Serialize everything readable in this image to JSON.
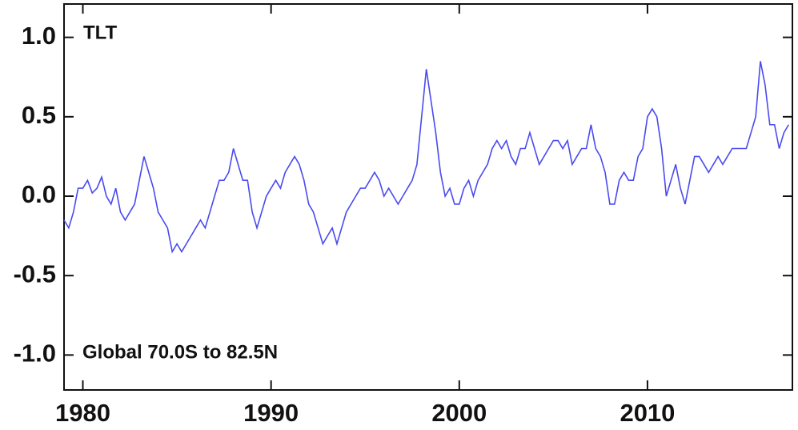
{
  "chart_data": {
    "type": "line",
    "annotations": [
      "TLT",
      "Global  70.0S to  82.5N"
    ],
    "x": [
      1979.0,
      1979.25,
      1979.5,
      1979.75,
      1980.0,
      1980.25,
      1980.5,
      1980.75,
      1981.0,
      1981.25,
      1981.5,
      1981.75,
      1982.0,
      1982.25,
      1982.5,
      1982.75,
      1983.0,
      1983.25,
      1983.5,
      1983.75,
      1984.0,
      1984.25,
      1984.5,
      1984.75,
      1985.0,
      1985.25,
      1985.5,
      1985.75,
      1986.0,
      1986.25,
      1986.5,
      1986.75,
      1987.0,
      1987.25,
      1987.5,
      1987.75,
      1988.0,
      1988.25,
      1988.5,
      1988.75,
      1989.0,
      1989.25,
      1989.5,
      1989.75,
      1990.0,
      1990.25,
      1990.5,
      1990.75,
      1991.0,
      1991.25,
      1991.5,
      1991.75,
      1992.0,
      1992.25,
      1992.5,
      1992.75,
      1993.0,
      1993.25,
      1993.5,
      1993.75,
      1994.0,
      1994.25,
      1994.5,
      1994.75,
      1995.0,
      1995.25,
      1995.5,
      1995.75,
      1996.0,
      1996.25,
      1996.5,
      1996.75,
      1997.0,
      1997.25,
      1997.5,
      1997.75,
      1998.0,
      1998.25,
      1998.5,
      1998.75,
      1999.0,
      1999.25,
      1999.5,
      1999.75,
      2000.0,
      2000.25,
      2000.5,
      2000.75,
      2001.0,
      2001.25,
      2001.5,
      2001.75,
      2002.0,
      2002.25,
      2002.5,
      2002.75,
      2003.0,
      2003.25,
      2003.5,
      2003.75,
      2004.0,
      2004.25,
      2004.5,
      2004.75,
      2005.0,
      2005.25,
      2005.5,
      2005.75,
      2006.0,
      2006.25,
      2006.5,
      2006.75,
      2007.0,
      2007.25,
      2007.5,
      2007.75,
      2008.0,
      2008.25,
      2008.5,
      2008.75,
      2009.0,
      2009.25,
      2009.5,
      2009.75,
      2010.0,
      2010.25,
      2010.5,
      2010.75,
      2011.0,
      2011.25,
      2011.5,
      2011.75,
      2012.0,
      2012.25,
      2012.5,
      2012.75,
      2013.0,
      2013.25,
      2013.5,
      2013.75,
      2014.0,
      2014.25,
      2014.5,
      2014.75,
      2015.0,
      2015.25,
      2015.5,
      2015.75,
      2016.0,
      2016.25,
      2016.5,
      2016.75,
      2017.0,
      2017.25,
      2017.5
    ],
    "series": [
      {
        "color": "#4a4af0",
        "values": [
          -0.15,
          -0.2,
          -0.1,
          0.05,
          0.05,
          0.1,
          0.02,
          0.05,
          0.12,
          0.0,
          -0.05,
          0.05,
          -0.1,
          -0.15,
          -0.1,
          -0.05,
          0.1,
          0.25,
          0.15,
          0.05,
          -0.1,
          -0.15,
          -0.2,
          -0.35,
          -0.3,
          -0.35,
          -0.3,
          -0.25,
          -0.2,
          -0.15,
          -0.2,
          -0.1,
          0.0,
          0.1,
          0.1,
          0.15,
          0.3,
          0.2,
          0.1,
          0.1,
          -0.1,
          -0.2,
          -0.1,
          0.0,
          0.05,
          0.1,
          0.05,
          0.15,
          0.2,
          0.25,
          0.2,
          0.1,
          -0.05,
          -0.1,
          -0.2,
          -0.3,
          -0.25,
          -0.2,
          -0.3,
          -0.2,
          -0.1,
          -0.05,
          0.0,
          0.05,
          0.05,
          0.1,
          0.15,
          0.1,
          0.0,
          0.05,
          0.0,
          -0.05,
          0.0,
          0.05,
          0.1,
          0.2,
          0.5,
          0.8,
          0.6,
          0.4,
          0.15,
          0.0,
          0.05,
          -0.05,
          -0.05,
          0.05,
          0.1,
          0.0,
          0.1,
          0.15,
          0.2,
          0.3,
          0.35,
          0.3,
          0.35,
          0.25,
          0.2,
          0.3,
          0.3,
          0.4,
          0.3,
          0.2,
          0.25,
          0.3,
          0.35,
          0.35,
          0.3,
          0.35,
          0.2,
          0.25,
          0.3,
          0.3,
          0.45,
          0.3,
          0.25,
          0.15,
          -0.05,
          -0.05,
          0.1,
          0.15,
          0.1,
          0.1,
          0.25,
          0.3,
          0.5,
          0.55,
          0.5,
          0.3,
          0.0,
          0.1,
          0.2,
          0.05,
          -0.05,
          0.1,
          0.25,
          0.25,
          0.2,
          0.15,
          0.2,
          0.25,
          0.2,
          0.25,
          0.3,
          0.3,
          0.3,
          0.3,
          0.4,
          0.5,
          0.85,
          0.7,
          0.45,
          0.45,
          0.3,
          0.4,
          0.45
        ]
      }
    ],
    "xlim": [
      1979.0,
      2017.7
    ],
    "xticks": [
      1980,
      1990,
      2000,
      2010
    ],
    "ylim": [
      -1.22,
      1.21
    ],
    "yticks": [
      {
        "value": -1,
        "label": "-1.0"
      },
      -0.5,
      {
        "value": 0,
        "label": "0.0"
      },
      0.5,
      {
        "value": 1,
        "label": "1.0"
      }
    ]
  }
}
